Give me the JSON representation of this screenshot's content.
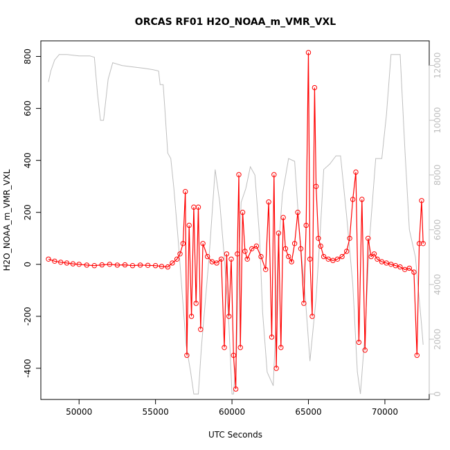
{
  "chart_data": {
    "type": "line",
    "title": "ORCAS RF01 H2O_NOAA_m_VMR_VXL",
    "xlabel": "UTC Seconds",
    "ylabel": "H2O_NOAA_m_VMR_VXL",
    "y2label": "",
    "xlim": [
      47500,
      72900
    ],
    "ylim": [
      -520,
      860
    ],
    "y2lim": [
      -200,
      12900
    ],
    "x_ticks": [
      50000,
      55000,
      60000,
      65000,
      70000
    ],
    "y_ticks": [
      -400,
      -200,
      0,
      200,
      400,
      600,
      800
    ],
    "y2_ticks": [
      0,
      2000,
      4000,
      6000,
      8000,
      10000,
      12000
    ],
    "grid": false,
    "legend": "none",
    "series": [
      {
        "color": "#ff0000",
        "marker": "open-circle",
        "axis": "left",
        "x": [
          48000,
          48400,
          48800,
          49200,
          49600,
          50000,
          50500,
          51000,
          51500,
          52000,
          52500,
          53000,
          53500,
          54000,
          54500,
          55000,
          55400,
          55800,
          56100,
          56400,
          56600,
          56800,
          56950,
          57050,
          57200,
          57350,
          57500,
          57650,
          57800,
          57950,
          58100,
          58400,
          58700,
          59000,
          59300,
          59500,
          59650,
          59800,
          59950,
          60100,
          60250,
          60350,
          60450,
          60550,
          60700,
          60850,
          61000,
          61300,
          61600,
          61900,
          62200,
          62400,
          62600,
          62750,
          62900,
          63050,
          63200,
          63350,
          63500,
          63700,
          63900,
          64100,
          64300,
          64500,
          64700,
          64850,
          65000,
          65100,
          65250,
          65400,
          65500,
          65650,
          65800,
          66000,
          66300,
          66600,
          66900,
          67200,
          67500,
          67700,
          67900,
          68100,
          68300,
          68500,
          68700,
          68900,
          69100,
          69300,
          69500,
          69800,
          70100,
          70400,
          70700,
          71000,
          71300,
          71600,
          71900,
          72100,
          72250,
          72400,
          72500
        ],
        "values": [
          20,
          12,
          8,
          5,
          2,
          0,
          -3,
          -5,
          -2,
          0,
          -3,
          -2,
          -5,
          -3,
          -4,
          -5,
          -8,
          -10,
          5,
          20,
          40,
          80,
          280,
          -350,
          150,
          -200,
          220,
          -150,
          220,
          -250,
          80,
          30,
          10,
          5,
          20,
          -320,
          40,
          -200,
          20,
          -350,
          -480,
          40,
          345,
          -320,
          200,
          50,
          20,
          60,
          70,
          30,
          -20,
          240,
          -280,
          345,
          -400,
          120,
          -320,
          180,
          60,
          30,
          10,
          80,
          200,
          60,
          -150,
          150,
          815,
          20,
          -200,
          680,
          300,
          100,
          70,
          30,
          20,
          15,
          20,
          30,
          50,
          100,
          250,
          355,
          -300,
          250,
          -330,
          100,
          30,
          40,
          20,
          10,
          5,
          0,
          -5,
          -10,
          -20,
          -15,
          -30,
          -350,
          80,
          245,
          80
        ]
      },
      {
        "color": "#bebebe",
        "marker": "none",
        "axis": "right",
        "x": [
          48000,
          48150,
          48400,
          48700,
          49200,
          50000,
          50700,
          51000,
          51200,
          51400,
          51600,
          51900,
          52200,
          52800,
          53500,
          54200,
          54800,
          55200,
          55300,
          55500,
          55600,
          55800,
          56000,
          56200,
          56500,
          56700,
          57000,
          57300,
          57500,
          57800,
          58000,
          58500,
          58900,
          59200,
          59500,
          59800,
          60000,
          60100,
          60300,
          60400,
          60600,
          60900,
          61200,
          61500,
          61800,
          62000,
          62300,
          62700,
          62900,
          63000,
          63300,
          63700,
          64100,
          64400,
          64800,
          65100,
          65500,
          65800,
          66000,
          66400,
          66800,
          67100,
          67500,
          67900,
          68200,
          68400,
          68700,
          69000,
          69400,
          69800,
          70100,
          70400,
          70700,
          71000,
          71300,
          71600,
          72000,
          72400,
          72500
        ],
        "values": [
          11400,
          11800,
          12200,
          12400,
          12400,
          12350,
          12350,
          12300,
          11000,
          10000,
          10000,
          11500,
          12100,
          12000,
          11950,
          11900,
          11850,
          11800,
          11300,
          11300,
          10500,
          8800,
          8600,
          7500,
          5500,
          4000,
          1800,
          800,
          0,
          0,
          1700,
          5000,
          8200,
          7000,
          5000,
          2500,
          0,
          0,
          1500,
          4000,
          7000,
          7500,
          8300,
          8000,
          5800,
          3000,
          800,
          300,
          3000,
          5000,
          7300,
          8600,
          8500,
          6000,
          3500,
          1200,
          3500,
          6200,
          8200,
          8400,
          8700,
          8700,
          6500,
          4000,
          800,
          0,
          2200,
          5700,
          8600,
          8600,
          10200,
          12400,
          12400,
          12400,
          9000,
          6000,
          5000,
          2500,
          1800
        ]
      }
    ]
  }
}
